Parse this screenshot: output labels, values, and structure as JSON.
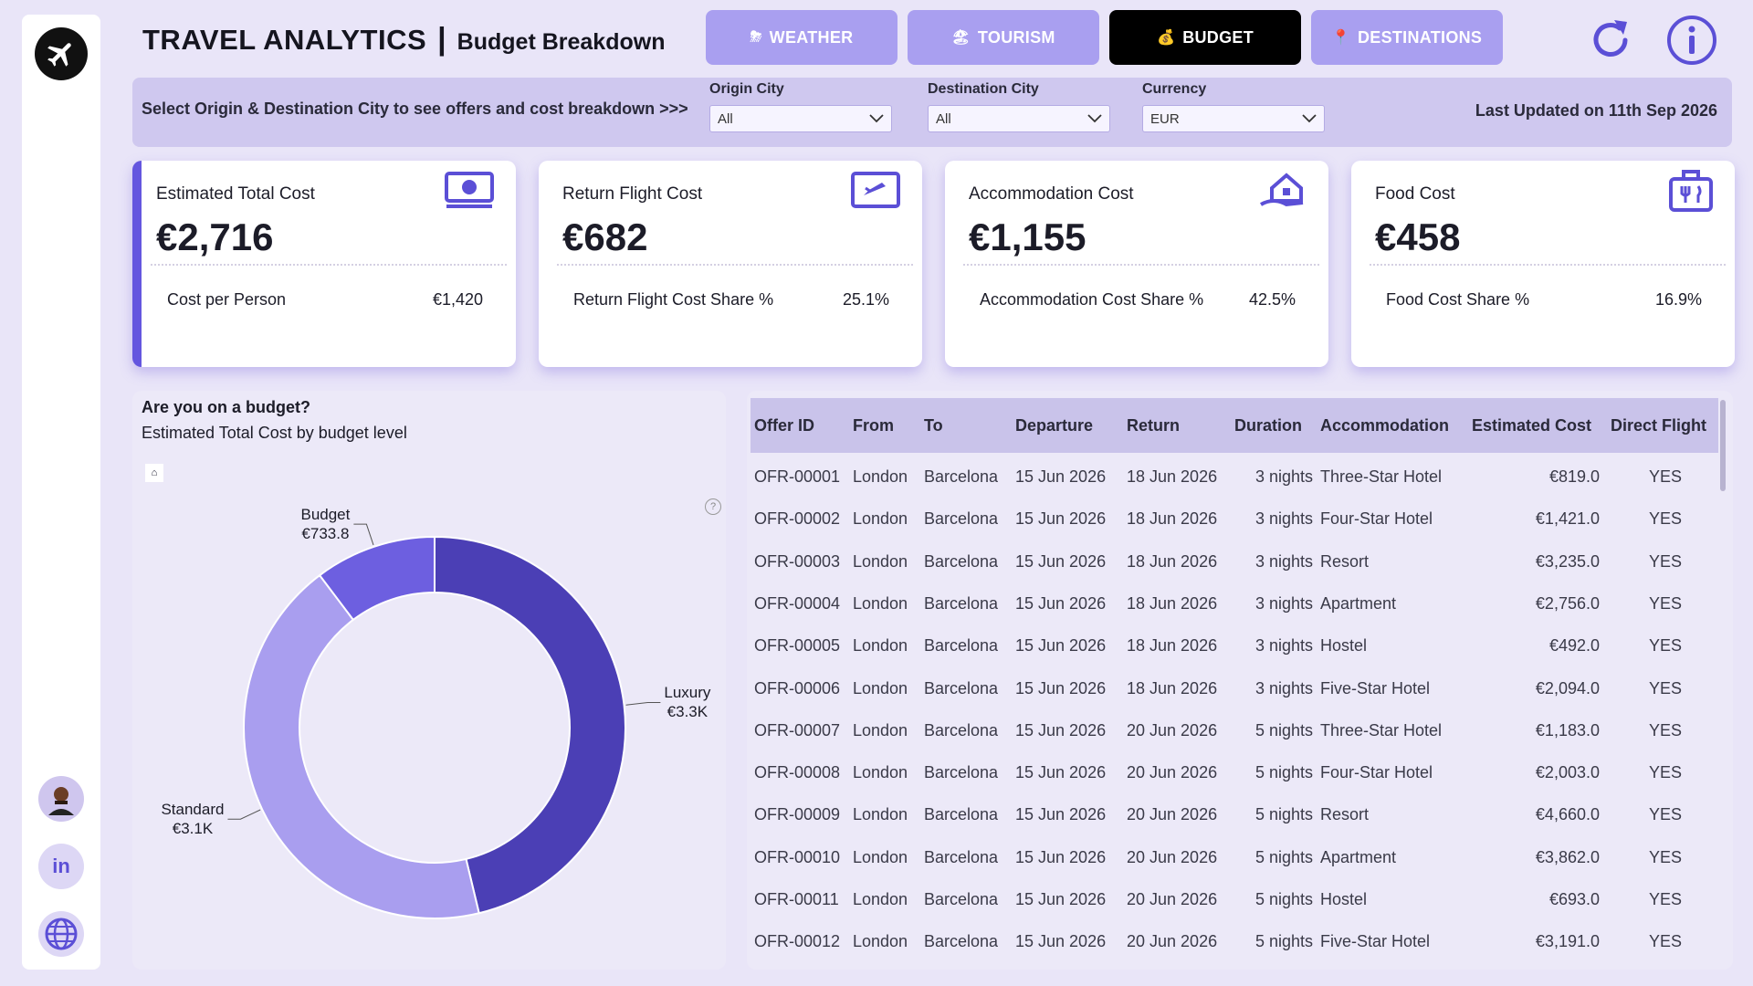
{
  "sidebar": {
    "logo": "airplane-icon",
    "buttons": [
      {
        "name": "avatar",
        "icon": "avatar-icon"
      },
      {
        "name": "linkedin",
        "label": "in"
      },
      {
        "name": "globe",
        "icon": "globe-icon"
      }
    ]
  },
  "header": {
    "title": "TRAVEL ANALYTICS",
    "separator": "|",
    "subtitle": "Budget Breakdown"
  },
  "nav": {
    "tabs": [
      {
        "label": "WEATHER",
        "icon": "⛈",
        "active": false
      },
      {
        "label": "TOURISM",
        "icon": "🏖",
        "active": false
      },
      {
        "label": "BUDGET",
        "icon": "💰",
        "active": true
      },
      {
        "label": "DESTINATIONS",
        "icon": "📍",
        "active": false
      }
    ],
    "refresh_icon": "refresh-icon",
    "info_icon": "info-icon"
  },
  "filters": {
    "prompt": "Select Origin & Destination City to see offers and cost breakdown >>>",
    "origin": {
      "label": "Origin City",
      "value": "All"
    },
    "destination": {
      "label": "Destination City",
      "value": "All"
    },
    "currency": {
      "label": "Currency",
      "value": "EUR"
    },
    "last_updated": "Last Updated on 11th Sep 2026"
  },
  "kpis": [
    {
      "title": "Estimated Total Cost",
      "value": "€2,716",
      "sub_label": "Cost per Person",
      "sub_value": "€1,420",
      "icon": "money-icon"
    },
    {
      "title": "Return Flight Cost",
      "value": "€682",
      "sub_label": "Return Flight Cost Share %",
      "sub_value": "25.1%",
      "icon": "flight-ticket-icon"
    },
    {
      "title": "Accommodation Cost",
      "value": "€1,155",
      "sub_label": "Accommodation Cost Share %",
      "sub_value": "42.5%",
      "icon": "house-hand-icon"
    },
    {
      "title": "Food Cost",
      "value": "€458",
      "sub_label": "Food Cost Share %",
      "sub_value": "16.9%",
      "icon": "food-bag-icon"
    }
  ],
  "donut": {
    "title": "Are you on a budget?",
    "subtitle": "Estimated Total Cost by budget level",
    "home_icon": "home-icon",
    "help_icon": "help-icon",
    "help_glyph": "?"
  },
  "chart_data": {
    "type": "pie",
    "variant": "donut",
    "categories": [
      "Luxury",
      "Standard",
      "Budget"
    ],
    "values": [
      3300,
      3100,
      733.8
    ],
    "labels": [
      "€3.3K",
      "€3.1K",
      "€733.8"
    ],
    "colors": [
      "#4b3fb5",
      "#a99eef",
      "#6d5fe0"
    ],
    "title": "Are you on a budget?",
    "subtitle": "Estimated Total Cost by budget level"
  },
  "table": {
    "columns": [
      "Offer ID",
      "From",
      "To",
      "Departure",
      "Return",
      "Duration",
      "Accommodation",
      "Estimated Cost",
      "Direct Flight"
    ],
    "rows": [
      [
        "OFR-00001",
        "London",
        "Barcelona",
        "15 Jun 2026",
        "18 Jun 2026",
        "3 nights",
        "Three-Star Hotel",
        "€819.0",
        "YES"
      ],
      [
        "OFR-00002",
        "London",
        "Barcelona",
        "15 Jun 2026",
        "18 Jun 2026",
        "3 nights",
        "Four-Star Hotel",
        "€1,421.0",
        "YES"
      ],
      [
        "OFR-00003",
        "London",
        "Barcelona",
        "15 Jun 2026",
        "18 Jun 2026",
        "3 nights",
        "Resort",
        "€3,235.0",
        "YES"
      ],
      [
        "OFR-00004",
        "London",
        "Barcelona",
        "15 Jun 2026",
        "18 Jun 2026",
        "3 nights",
        "Apartment",
        "€2,756.0",
        "YES"
      ],
      [
        "OFR-00005",
        "London",
        "Barcelona",
        "15 Jun 2026",
        "18 Jun 2026",
        "3 nights",
        "Hostel",
        "€492.0",
        "YES"
      ],
      [
        "OFR-00006",
        "London",
        "Barcelona",
        "15 Jun 2026",
        "18 Jun 2026",
        "3 nights",
        "Five-Star Hotel",
        "€2,094.0",
        "YES"
      ],
      [
        "OFR-00007",
        "London",
        "Barcelona",
        "15 Jun 2026",
        "20 Jun 2026",
        "5 nights",
        "Three-Star Hotel",
        "€1,183.0",
        "YES"
      ],
      [
        "OFR-00008",
        "London",
        "Barcelona",
        "15 Jun 2026",
        "20 Jun 2026",
        "5 nights",
        "Four-Star Hotel",
        "€2,003.0",
        "YES"
      ],
      [
        "OFR-00009",
        "London",
        "Barcelona",
        "15 Jun 2026",
        "20 Jun 2026",
        "5 nights",
        "Resort",
        "€4,660.0",
        "YES"
      ],
      [
        "OFR-00010",
        "London",
        "Barcelona",
        "15 Jun 2026",
        "20 Jun 2026",
        "5 nights",
        "Apartment",
        "€3,862.0",
        "YES"
      ],
      [
        "OFR-00011",
        "London",
        "Barcelona",
        "15 Jun 2026",
        "20 Jun 2026",
        "5 nights",
        "Hostel",
        "€693.0",
        "YES"
      ],
      [
        "OFR-00012",
        "London",
        "Barcelona",
        "15 Jun 2026",
        "20 Jun 2026",
        "5 nights",
        "Five-Star Hotel",
        "€3,191.0",
        "YES"
      ]
    ]
  },
  "colors": {
    "background": "#e9e5f8",
    "accent": "#6456df",
    "nav_inactive": "#a99ff0",
    "nav_active": "#000000",
    "table_header": "#c9c3ea"
  }
}
